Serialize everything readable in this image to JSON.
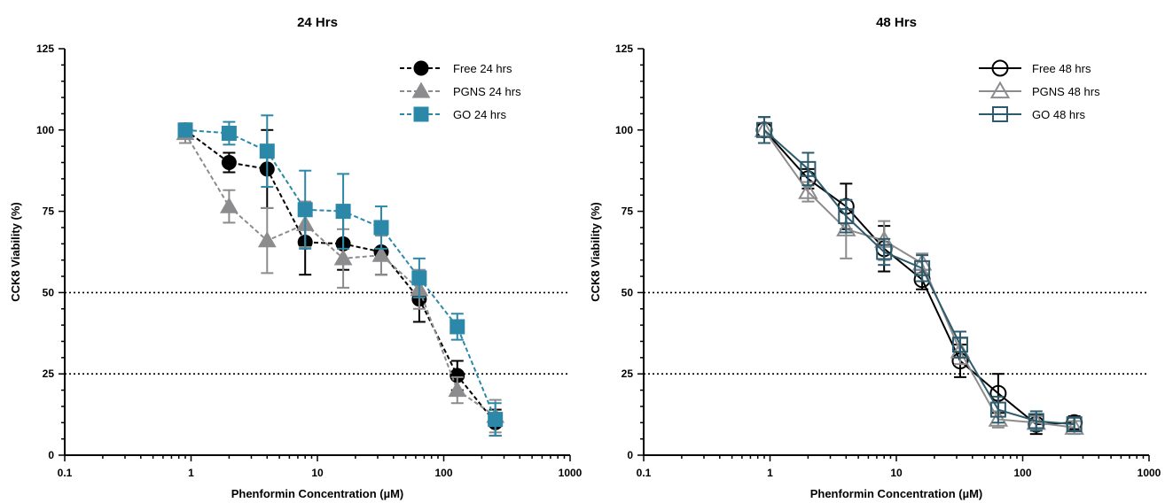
{
  "chart_data": [
    {
      "type": "line",
      "title": "24 Hrs",
      "xlabel": "Phenformin Concentration (µM)",
      "ylabel": "CCK8 Viability  (%)",
      "xscale": "log",
      "xlim": [
        0.1,
        1000
      ],
      "ylim": [
        0,
        125
      ],
      "xticks": [
        "0.1",
        "1",
        "10",
        "100",
        "1000"
      ],
      "yticks": [
        "0",
        "25",
        "50",
        "75",
        "100",
        "125"
      ],
      "reference_lines_y": [
        50,
        25
      ],
      "legend": "top-right",
      "x": [
        0.9,
        2,
        4,
        8,
        16,
        32,
        64,
        128,
        256
      ],
      "series": [
        {
          "name": "Free 24 hrs",
          "color": "#000000",
          "marker": "circle-filled",
          "line": "dashed",
          "values": [
            100,
            90,
            88,
            65.5,
            65,
            62.5,
            48,
            24.5,
            10
          ],
          "errors": [
            2,
            3,
            12,
            10,
            8,
            7,
            7,
            4.5,
            4
          ]
        },
        {
          "name": "PGNS 24 hrs",
          "color": "#8c8c8e",
          "marker": "triangle-filled",
          "line": "dashed",
          "values": [
            99,
            76.5,
            66,
            71,
            60.5,
            61.5,
            51,
            20,
            12
          ],
          "errors": [
            3,
            5,
            10,
            7,
            9,
            6,
            6,
            4,
            5
          ]
        },
        {
          "name": "GO 24 hrs",
          "color": "#2b88a8",
          "marker": "square-filled",
          "line": "dashed",
          "values": [
            100,
            99,
            93.5,
            75.5,
            75,
            70,
            54.5,
            39.5,
            11
          ],
          "errors": [
            2,
            3.5,
            11,
            12,
            11.5,
            6.5,
            6,
            4,
            5
          ]
        }
      ]
    },
    {
      "type": "line",
      "title": "48 Hrs",
      "xlabel": "Phenformin Concentration (µM)",
      "ylabel": "CCK8 Viability  (%)",
      "xscale": "log",
      "xlim": [
        0.1,
        1000
      ],
      "ylim": [
        0,
        125
      ],
      "xticks": [
        "0.1",
        "1",
        "10",
        "100",
        "1000"
      ],
      "yticks": [
        "0",
        "25",
        "50",
        "75",
        "100",
        "125"
      ],
      "reference_lines_y": [
        50,
        25
      ],
      "legend": "top-right",
      "x": [
        0.9,
        2,
        4,
        8,
        16,
        32,
        64,
        128,
        256
      ],
      "series": [
        {
          "name": "Free 48 hrs",
          "color": "#000000",
          "marker": "circle-open",
          "line": "solid",
          "values": [
            100,
            85,
            76.5,
            63.5,
            54,
            29,
            19,
            9.5,
            10
          ],
          "errors": [
            4,
            3,
            7,
            7,
            3,
            5,
            6,
            3,
            2
          ]
        },
        {
          "name": "PGNS 48 hrs",
          "color": "#8c8c8e",
          "marker": "triangle-open",
          "line": "solid",
          "values": [
            100,
            81,
            69.5,
            66,
            59,
            32,
            11,
            10,
            8.5
          ],
          "errors": [
            4,
            3,
            9,
            6,
            3,
            4,
            2.5,
            2,
            2
          ]
        },
        {
          "name": "GO 48 hrs",
          "color": "#2d5b6c",
          "marker": "square-open",
          "line": "solid",
          "values": [
            100,
            88,
            73.5,
            62.5,
            57.5,
            34,
            14,
            10.5,
            9.5
          ],
          "errors": [
            4,
            5,
            5,
            4,
            4,
            4,
            4,
            3,
            2
          ]
        }
      ]
    }
  ]
}
